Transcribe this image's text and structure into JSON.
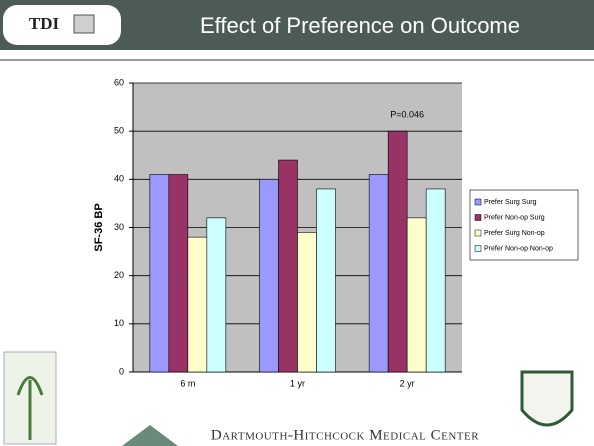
{
  "logo": "TDI",
  "footer": "Dartmouth-Hitchcock Medical Center",
  "chart_data": {
    "type": "bar",
    "title": "Effect of Preference on Outcome",
    "y_label": "SF-36 BP",
    "annotation": "P=0.046",
    "categories": [
      "6 m",
      "1 yr",
      "2 yr"
    ],
    "series": [
      {
        "name": "Prefer Surg Surg",
        "color": "#9999ff",
        "values": [
          41,
          40,
          41
        ]
      },
      {
        "name": "Prefer Non-op Surg",
        "color": "#993366",
        "values": [
          41,
          44,
          50
        ]
      },
      {
        "name": "Prefer Surg Non-op",
        "color": "#ffffcc",
        "values": [
          28,
          29,
          32
        ]
      },
      {
        "name": "Prefer Non-op Non-op",
        "color": "#ccffff",
        "values": [
          32,
          38,
          38
        ]
      }
    ],
    "ylim": [
      0,
      60
    ],
    "yticks": [
      0,
      10,
      20,
      30,
      40,
      50,
      60
    ],
    "grid": true,
    "legend": "right"
  }
}
